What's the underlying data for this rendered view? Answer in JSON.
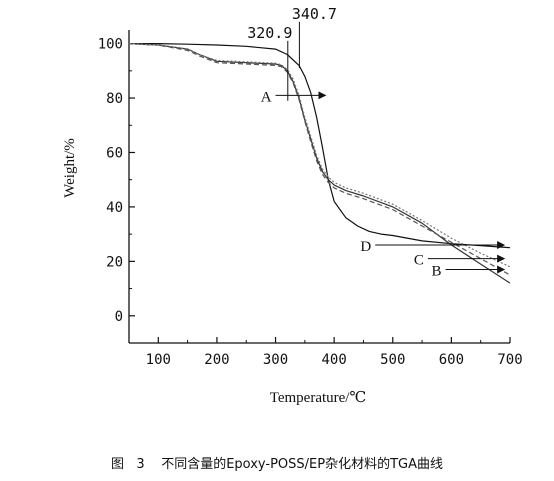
{
  "chart_data": {
    "type": "line",
    "title": "",
    "xlabel": "Temperature/℃",
    "ylabel": "Weight/%",
    "xlim": [
      50,
      700
    ],
    "ylim": [
      -10,
      105
    ],
    "xticks": [
      100,
      200,
      300,
      400,
      500,
      600,
      700
    ],
    "yticks": [
      0,
      20,
      40,
      60,
      80,
      100
    ],
    "grid": false,
    "legend": "none",
    "series": [
      {
        "name": "A",
        "color": "#111111",
        "dash": "",
        "x": [
          50,
          100,
          150,
          200,
          250,
          300,
          320,
          340,
          350,
          360,
          370,
          380,
          390,
          400,
          420,
          440,
          460,
          480,
          500,
          550,
          600,
          650,
          700
        ],
        "y": [
          100,
          100,
          99.8,
          99.5,
          99,
          98,
          96,
          92,
          88,
          82,
          73,
          62,
          50,
          42,
          36,
          33,
          31,
          30,
          29.5,
          27.5,
          26.5,
          25.8,
          25
        ]
      },
      {
        "name": "B",
        "color": "#333333",
        "dash": "",
        "x": [
          50,
          100,
          150,
          170,
          200,
          250,
          300,
          310,
          320,
          330,
          340,
          350,
          360,
          370,
          380,
          390,
          400,
          420,
          450,
          500,
          550,
          600,
          650,
          700
        ],
        "y": [
          100,
          99.5,
          98,
          96,
          93.5,
          93,
          92.5,
          92,
          90,
          86,
          80,
          72,
          65,
          58,
          53,
          50,
          48,
          46,
          44,
          40,
          34,
          26,
          19,
          12
        ]
      },
      {
        "name": "C",
        "color": "#555555",
        "dash": "5 3",
        "x": [
          50,
          100,
          150,
          170,
          200,
          250,
          300,
          310,
          320,
          330,
          340,
          350,
          360,
          370,
          380,
          390,
          400,
          420,
          450,
          500,
          550,
          600,
          650,
          700
        ],
        "y": [
          100,
          99.4,
          97.5,
          95.5,
          93,
          92.5,
          92,
          91.5,
          89.5,
          85.5,
          79.5,
          71.5,
          64,
          57,
          52,
          49,
          47,
          45,
          43,
          39,
          33,
          27,
          21,
          15
        ]
      },
      {
        "name": "D",
        "color": "#777777",
        "dash": "2 2",
        "x": [
          50,
          100,
          150,
          170,
          200,
          250,
          300,
          310,
          320,
          330,
          340,
          350,
          360,
          370,
          380,
          390,
          400,
          420,
          450,
          500,
          550,
          600,
          650,
          700
        ],
        "y": [
          100,
          99.5,
          98,
          96,
          93.8,
          93.3,
          92.8,
          92.2,
          90.5,
          87,
          81,
          73,
          66,
          59,
          54,
          51,
          49,
          47,
          45,
          41,
          35,
          28.5,
          23,
          18
        ]
      }
    ],
    "annotations": {
      "temp_markers": [
        {
          "label": "320.9",
          "x": 320.9
        },
        {
          "label": "340.7",
          "x": 340.7
        }
      ],
      "curve_arrows": [
        {
          "label": "A",
          "from_x": 300,
          "to_x": 385,
          "y": 81
        },
        {
          "label": "D",
          "from_x": 470,
          "to_x": 690,
          "y": 26
        },
        {
          "label": "C",
          "from_x": 560,
          "to_x": 690,
          "y": 21
        },
        {
          "label": "B",
          "from_x": 590,
          "to_x": 690,
          "y": 17
        }
      ]
    }
  },
  "caption": {
    "text": "图   3    不同含量的Epoxy-POSS/EP杂化材料的TGA曲线"
  }
}
